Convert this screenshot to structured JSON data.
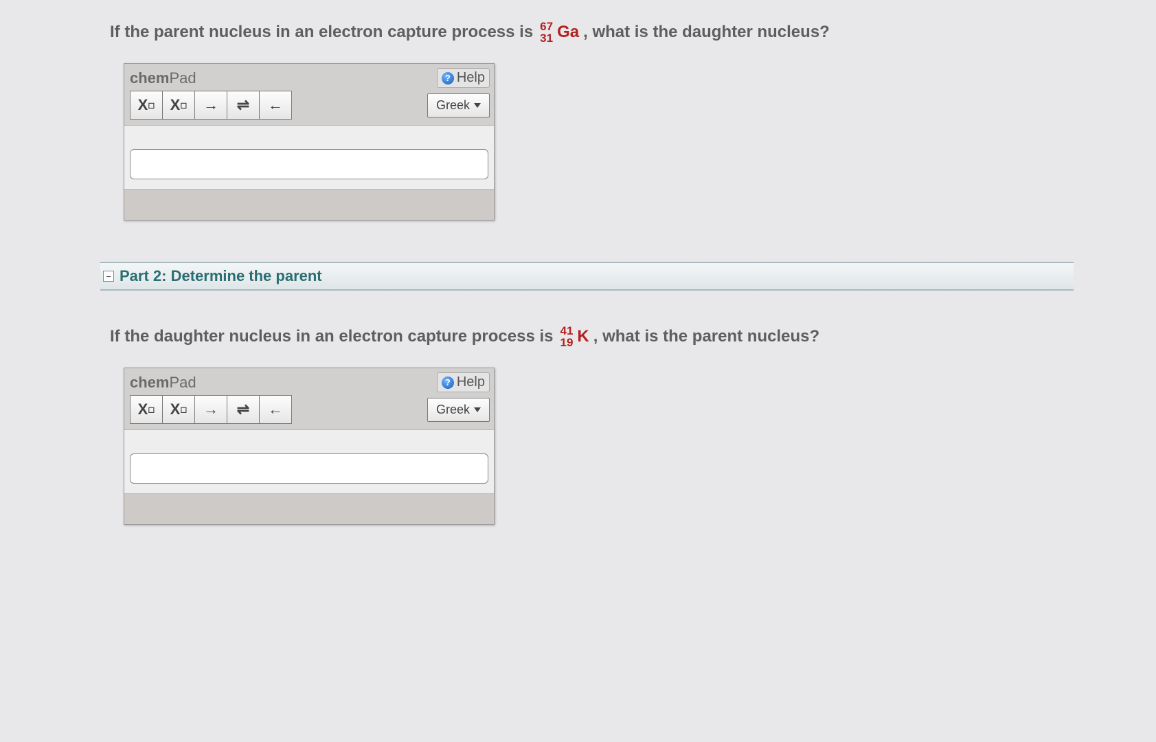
{
  "q1": {
    "prefix": "If the parent nucleus in an electron capture process is",
    "nuclide": {
      "mass": "67",
      "atomic": "31",
      "symbol": "Ga"
    },
    "suffix": ", what is the daughter nucleus?"
  },
  "chempad": {
    "brand_chem": "chem",
    "brand_pad": "Pad",
    "help": "Help",
    "greek": "Greek",
    "btn_sub": "X",
    "btn_sub_s": "◻",
    "btn_sup": "X",
    "btn_sup_s": "◻",
    "btn_arrow_r": "→",
    "btn_equil": "⇌",
    "btn_arrow_l": "←",
    "input_value": ""
  },
  "part2": {
    "collapse_glyph": "−",
    "title": "Part 2: Determine the parent"
  },
  "q2": {
    "prefix": "If the daughter nucleus in an electron capture process is",
    "nuclide": {
      "mass": "41",
      "atomic": "19",
      "symbol": "K"
    },
    "suffix": ", what is the parent nucleus?"
  }
}
